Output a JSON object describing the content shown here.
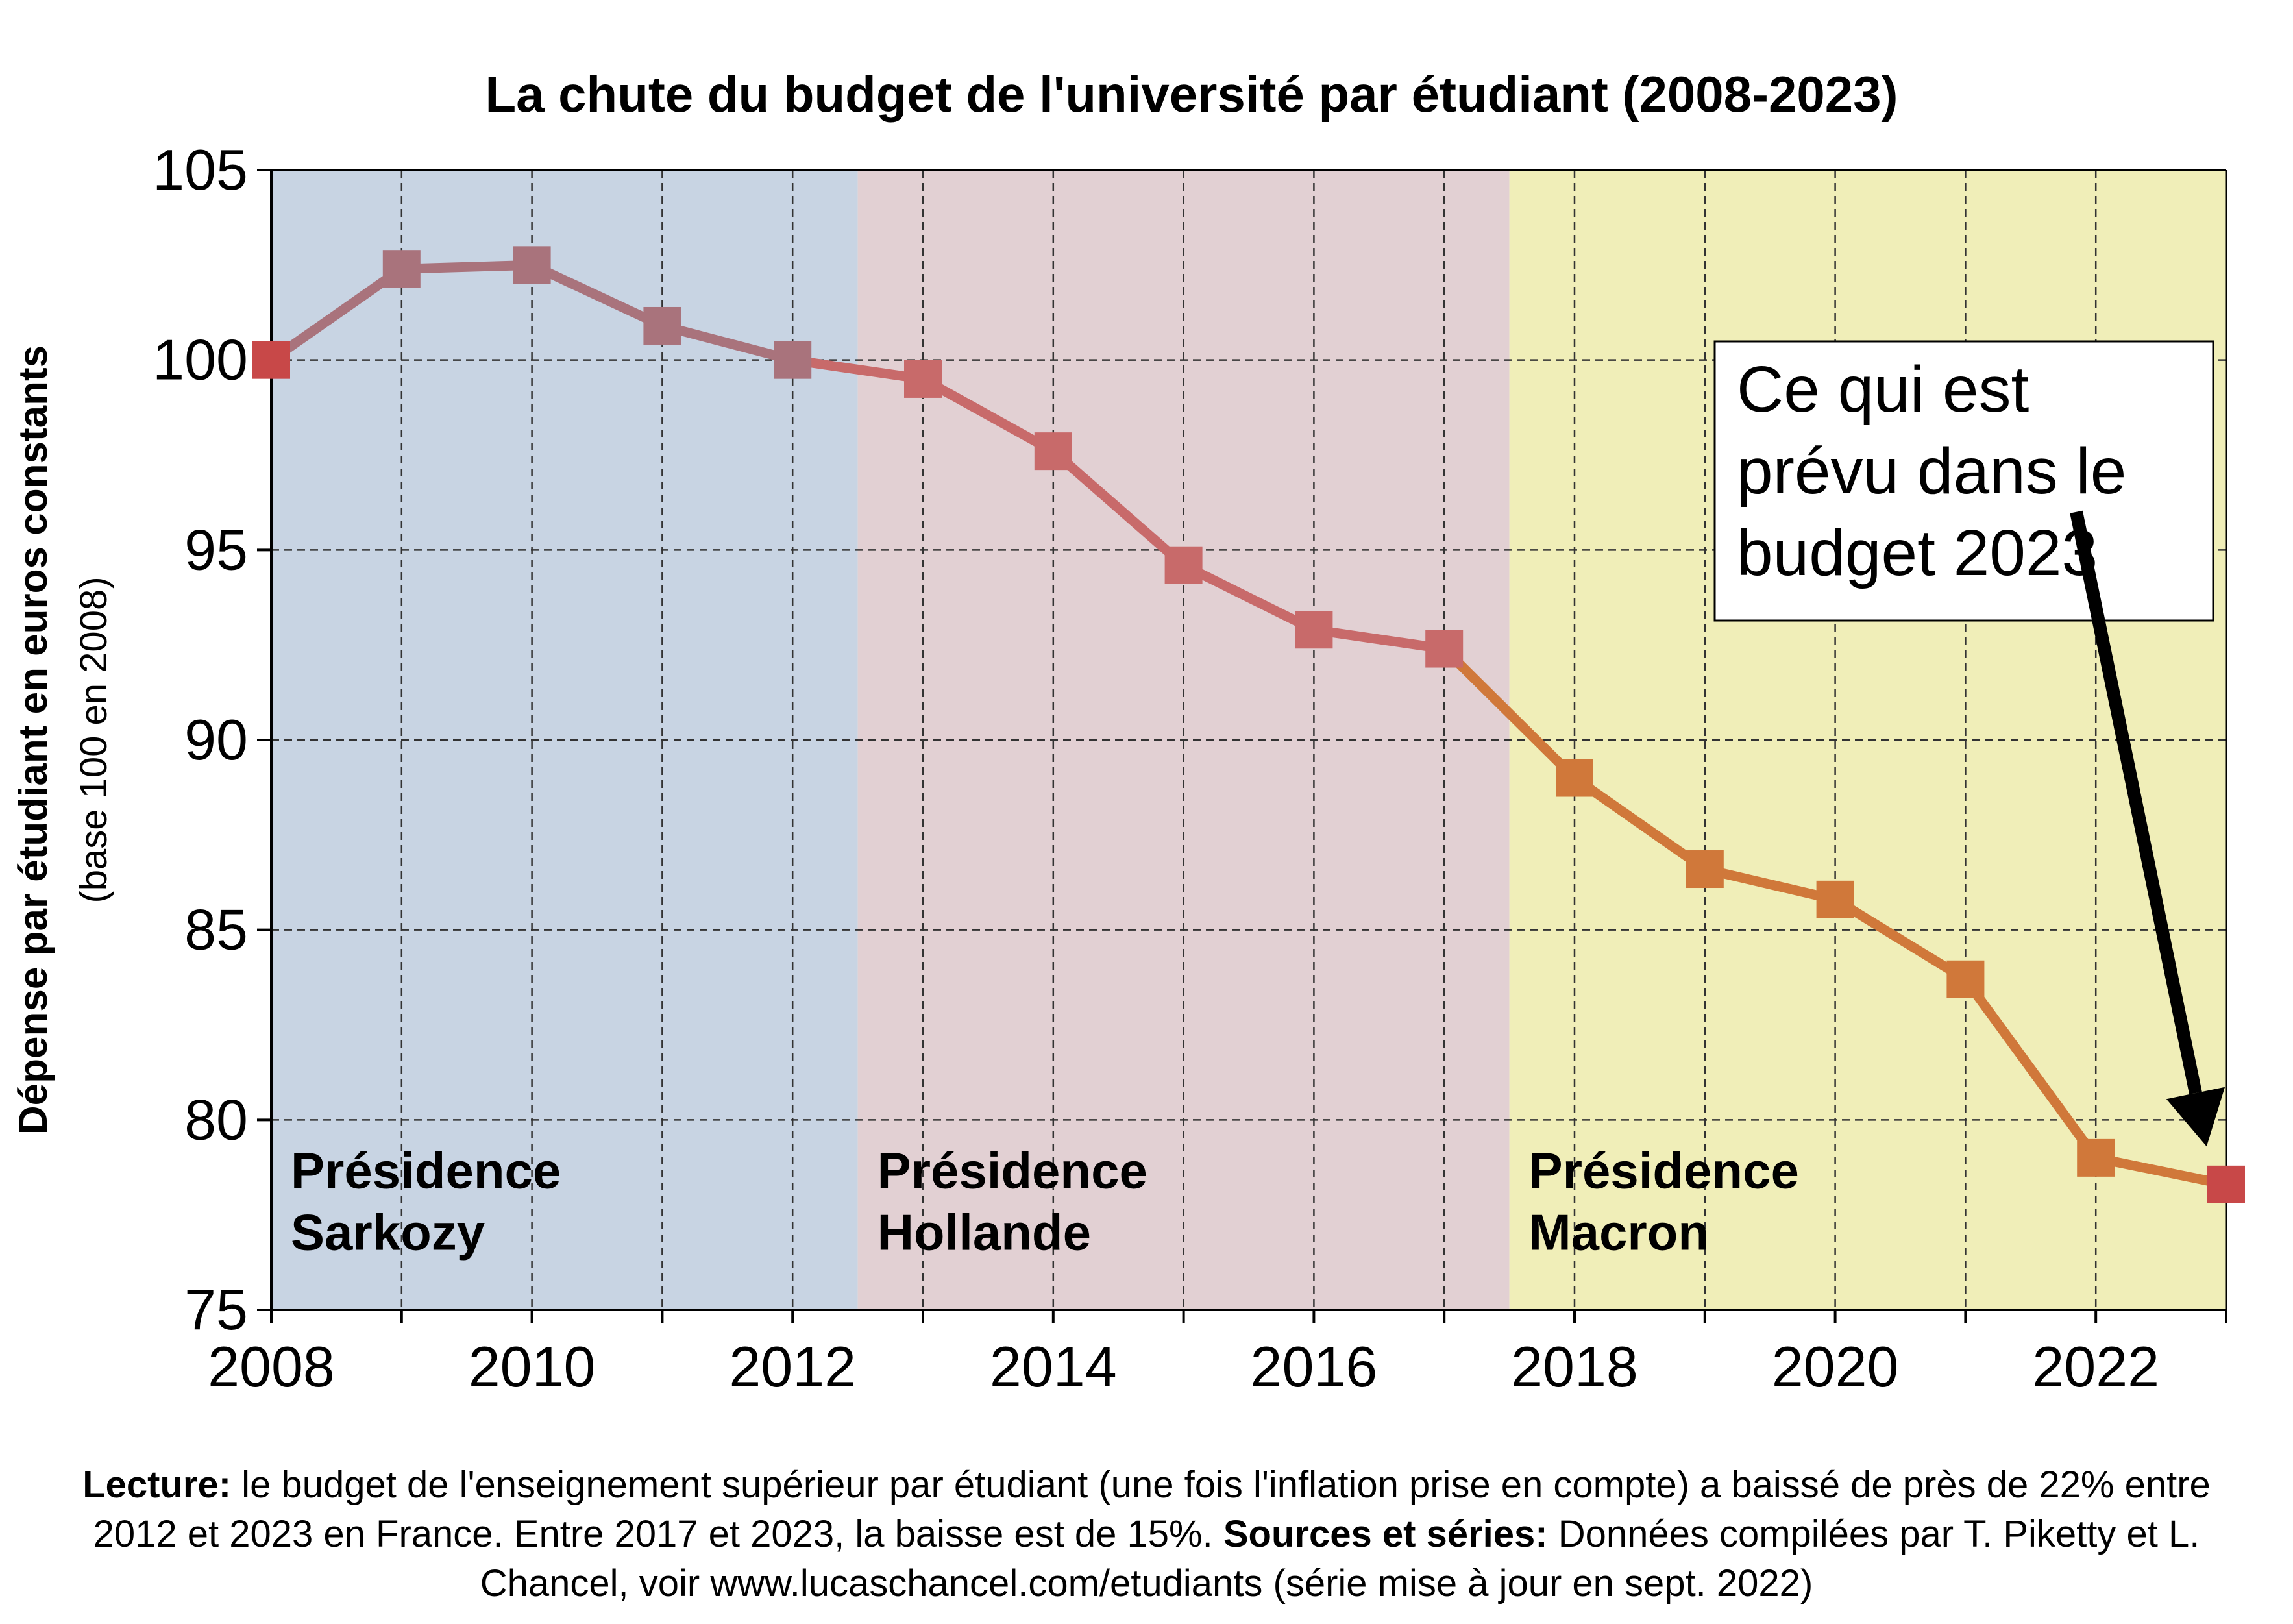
{
  "chart_data": {
    "type": "line",
    "title": "La chute du budget de l'université par étudiant (2008-2023)",
    "ylabel": "Dépense par étudiant en euros constants",
    "ylabel_sub": "(base 100 en 2008)",
    "xlabel": "",
    "xlim": [
      2008,
      2023
    ],
    "ylim": [
      75,
      105
    ],
    "x_ticks": [
      2008,
      2010,
      2012,
      2014,
      2016,
      2018,
      2020,
      2022
    ],
    "y_ticks": [
      75,
      80,
      85,
      90,
      95,
      100,
      105
    ],
    "grid": true,
    "x": [
      2008,
      2009,
      2010,
      2011,
      2012,
      2013,
      2014,
      2015,
      2016,
      2017,
      2018,
      2019,
      2020,
      2021,
      2022,
      2023
    ],
    "values": [
      100,
      102.4,
      102.5,
      100.9,
      100,
      99.5,
      97.6,
      94.6,
      92.9,
      92.4,
      89.0,
      86.6,
      85.8,
      83.7,
      79.0,
      78.3
    ],
    "periods": [
      {
        "line1": "Présidence",
        "line2": "Sarkozy",
        "from": 2008,
        "to": 2012.5,
        "color": "#c8d4e3"
      },
      {
        "line1": "Présidence",
        "line2": "Hollande",
        "from": 2012.5,
        "to": 2017.5,
        "color": "#e2d0d3"
      },
      {
        "line1": "Présidence",
        "line2": "Macron",
        "from": 2017.5,
        "to": 2023,
        "color": "#f0eeb8"
      }
    ],
    "series_colors": {
      "sarkozy": "#a9737c",
      "hollande": "#c86a6a",
      "macron": "#d0783a",
      "endpoints": "#c84848"
    },
    "annotation": {
      "lines": [
        "Ce qui est",
        "prévu dans le",
        "budget 2023"
      ],
      "arrow_from": [
        2021.85,
        96.0
      ],
      "arrow_to": [
        2022.85,
        79.3
      ]
    }
  },
  "caption": {
    "lecture_label": "Lecture:",
    "lecture_text": " le budget de l'enseignement supérieur par étudiant (une fois l'inflation prise en compte) a baissé de près de 22% entre 2012 et 2023 en France. Entre 2017 et 2023, la baisse est de 15%. ",
    "sources_label": "Sources et séries:",
    "sources_text": " Données compilées par T. Piketty et L. Chancel, voir www.lucaschancel.com/etudiants (série mise à jour en sept. 2022)"
  }
}
